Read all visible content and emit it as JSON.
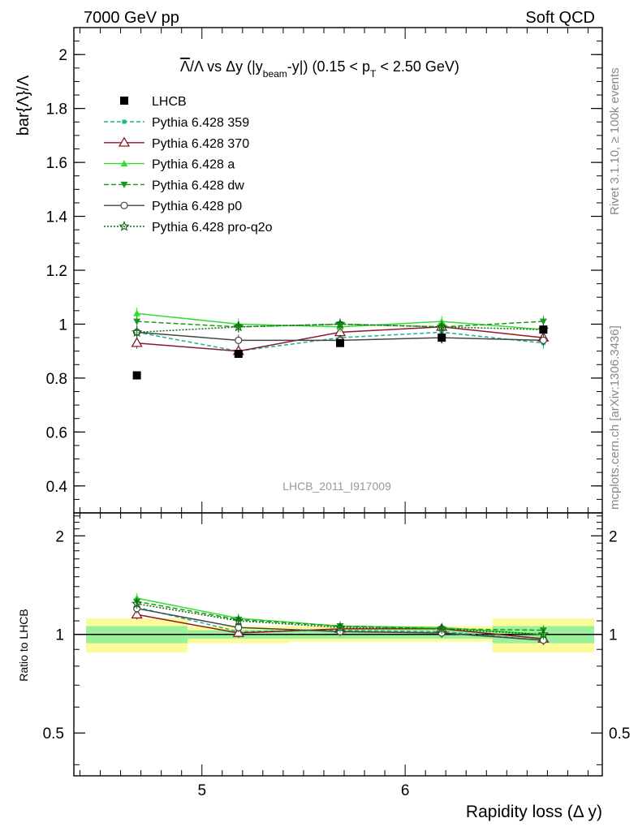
{
  "header": {
    "left": "7000 GeV pp",
    "right": "Soft QCD"
  },
  "side_labels": {
    "top": "Rivet 3.1.10, ≥ 100k events",
    "bottom": "mcplots.cern.ch [arXiv:1306.3436]"
  },
  "chart_data": [
    {
      "type": "line",
      "title": "Λ̄/Λ vs Δy (|y_beam-y|) (0.15 < p_T < 2.50 GeV)",
      "title_parts": {
        "bar_lambda": "Λ",
        "slash_lambda": "/Λ vs Δy (|y",
        "beam_sub": "beam",
        "mid": "-y|) (0.15 < p",
        "t_sub": "T",
        "end": "< 2.50 GeV)"
      },
      "ylabel": "bar{Λ}/Λ",
      "xlabel": "",
      "xlim": [
        4.37,
        6.97
      ],
      "ylim": [
        0.3,
        2.1
      ],
      "yticks": [
        0.4,
        0.6,
        0.8,
        1,
        1.2,
        1.4,
        1.6,
        1.8,
        2
      ],
      "ytick_labels": [
        "0.4",
        "0.6",
        "0.8",
        "1",
        "1.2",
        "1.4",
        "1.6",
        "1.8",
        "2"
      ],
      "x": [
        4.68,
        5.18,
        5.68,
        6.18,
        6.68
      ],
      "data_series": {
        "name": "LHCB",
        "values": [
          0.81,
          0.89,
          0.93,
          0.95,
          0.98
        ],
        "errors": [
          0.0,
          0.01,
          0.01,
          0.02,
          0.01
        ],
        "color": "#000000"
      },
      "series": [
        {
          "name": "Pythia 6.428 359",
          "values": [
            0.97,
            0.9,
            0.95,
            0.97,
            0.93
          ],
          "color": "#1bb28c",
          "dash": "5,3",
          "marker": "square-small"
        },
        {
          "name": "Pythia 6.428 370",
          "values": [
            0.93,
            0.9,
            0.97,
            0.99,
            0.95
          ],
          "color": "#8b1a2b",
          "dash": "",
          "marker": "triangle-open"
        },
        {
          "name": "Pythia 6.428 a",
          "values": [
            1.04,
            1.0,
            0.99,
            1.01,
            0.98
          ],
          "color": "#33dd33",
          "dash": "",
          "marker": "triangle-filled"
        },
        {
          "name": "Pythia 6.428 dw",
          "values": [
            1.01,
            0.99,
            1.0,
            0.99,
            1.01
          ],
          "color": "#199919",
          "dash": "6,3",
          "marker": "triangle-down"
        },
        {
          "name": "Pythia 6.428 p0",
          "values": [
            0.97,
            0.94,
            0.94,
            0.95,
            0.94
          ],
          "color": "#444444",
          "dash": "",
          "marker": "circle-open"
        },
        {
          "name": "Pythia 6.428 pro-q2o",
          "values": [
            0.97,
            0.99,
            1.0,
            0.99,
            0.98
          ],
          "color": "#116611",
          "dash": "2,2",
          "marker": "star-open"
        }
      ],
      "watermark": "LHCB_2011_I917009"
    },
    {
      "type": "line",
      "ylabel": "Ratio to LHCB",
      "xlabel": "Rapidity loss (Δ y)",
      "xlim": [
        4.37,
        6.97
      ],
      "ylim": [
        0.37,
        2.35
      ],
      "log_y": true,
      "yticks": [
        0.5,
        1,
        2
      ],
      "ytick_labels": [
        "0.5",
        "1",
        "2"
      ],
      "xticks": [
        5,
        6
      ],
      "xtick_labels": [
        "5",
        "6"
      ],
      "x": [
        4.68,
        5.18,
        5.68,
        6.18,
        6.68
      ],
      "bins": [
        [
          4.43,
          4.93
        ],
        [
          4.93,
          5.43
        ],
        [
          5.43,
          5.93
        ],
        [
          5.93,
          6.43
        ],
        [
          6.43,
          6.93
        ]
      ],
      "band_outer": [
        [
          0.88,
          1.12
        ],
        [
          0.94,
          1.06
        ],
        [
          0.95,
          1.06
        ],
        [
          0.95,
          1.06
        ],
        [
          0.88,
          1.12
        ]
      ],
      "band_inner": [
        [
          0.94,
          1.06
        ],
        [
          0.97,
          1.03
        ],
        [
          0.97,
          1.03
        ],
        [
          0.97,
          1.03
        ],
        [
          0.94,
          1.06
        ]
      ],
      "band_colors": {
        "outer": "#fbfb9b",
        "inner": "#9bf09b"
      },
      "series": [
        {
          "name": "Pythia 6.428 359",
          "values": [
            1.21,
            1.02,
            1.03,
            1.02,
            0.96
          ]
        },
        {
          "name": "Pythia 6.428 370",
          "values": [
            1.15,
            1.01,
            1.04,
            1.04,
            0.97
          ]
        },
        {
          "name": "Pythia 6.428 a",
          "values": [
            1.29,
            1.12,
            1.06,
            1.05,
            1.0
          ]
        },
        {
          "name": "Pythia 6.428 dw",
          "values": [
            1.26,
            1.11,
            1.06,
            1.04,
            1.03
          ]
        },
        {
          "name": "Pythia 6.428 p0",
          "values": [
            1.2,
            1.05,
            1.02,
            1.01,
            0.96
          ]
        },
        {
          "name": "Pythia 6.428 pro-q2o",
          "values": [
            1.24,
            1.1,
            1.05,
            1.04,
            1.0
          ]
        }
      ]
    }
  ]
}
